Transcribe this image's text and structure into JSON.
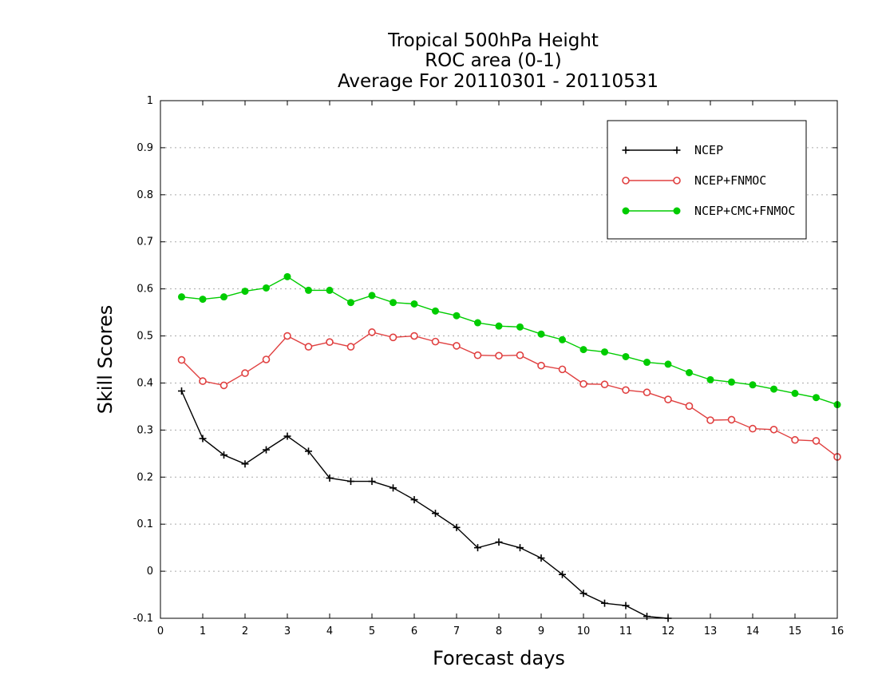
{
  "chart_data": {
    "type": "line",
    "title_lines": [
      "Tropical 500hPa Height",
      "ROC area (0-1)",
      "Average For 20110301 - 20110531"
    ],
    "xlabel": "Forecast days",
    "ylabel": "Skill Scores",
    "xlim": [
      0,
      16
    ],
    "ylim": [
      -0.1,
      1
    ],
    "xticks": [
      "0",
      "1",
      "2",
      "3",
      "4",
      "5",
      "6",
      "7",
      "8",
      "9",
      "10",
      "11",
      "12",
      "13",
      "14",
      "15",
      "16"
    ],
    "yticks": [
      "-0.1",
      "0",
      "0.1",
      "0.2",
      "0.3",
      "0.4",
      "0.5",
      "0.6",
      "0.7",
      "0.8",
      "0.9",
      "1"
    ],
    "grid": "horizontal-dotted",
    "legend_position": "top-right",
    "series": [
      {
        "name": "NCEP",
        "color": "#000000",
        "marker": "plus",
        "x": [
          0.5,
          1,
          1.5,
          2,
          2.5,
          3,
          3.5,
          4,
          4.5,
          5,
          5.5,
          6,
          6.5,
          7,
          7.5,
          8,
          8.5,
          9,
          9.5,
          10,
          10.5,
          11,
          11.5,
          12
        ],
        "y": [
          0.383,
          0.282,
          0.247,
          0.228,
          0.258,
          0.287,
          0.255,
          0.198,
          0.191,
          0.191,
          0.177,
          0.152,
          0.123,
          0.093,
          0.05,
          0.062,
          0.05,
          0.028,
          -0.007,
          -0.047,
          -0.068,
          -0.073,
          -0.096,
          -0.1
        ]
      },
      {
        "name": "NCEP+FNMOC",
        "color": "#e04040",
        "marker": "open-circle",
        "x": [
          0.5,
          1,
          1.5,
          2,
          2.5,
          3,
          3.5,
          4,
          4.5,
          5,
          5.5,
          6,
          6.5,
          7,
          7.5,
          8,
          8.5,
          9,
          9.5,
          10,
          10.5,
          11,
          11.5,
          12,
          12.5,
          13,
          13.5,
          14,
          14.5,
          15,
          15.5,
          16
        ],
        "y": [
          0.449,
          0.404,
          0.395,
          0.421,
          0.45,
          0.5,
          0.477,
          0.487,
          0.477,
          0.508,
          0.497,
          0.5,
          0.488,
          0.479,
          0.459,
          0.458,
          0.459,
          0.437,
          0.429,
          0.398,
          0.397,
          0.385,
          0.38,
          0.365,
          0.351,
          0.321,
          0.322,
          0.303,
          0.301,
          0.279,
          0.277,
          0.243
        ]
      },
      {
        "name": "NCEP+CMC+FNMOC",
        "color": "#00cc00",
        "marker": "filled-circle",
        "x": [
          0.5,
          1,
          1.5,
          2,
          2.5,
          3,
          3.5,
          4,
          4.5,
          5,
          5.5,
          6,
          6.5,
          7,
          7.5,
          8,
          8.5,
          9,
          9.5,
          10,
          10.5,
          11,
          11.5,
          12,
          12.5,
          13,
          13.5,
          14,
          14.5,
          15,
          15.5,
          16
        ],
        "y": [
          0.583,
          0.578,
          0.583,
          0.595,
          0.602,
          0.626,
          0.597,
          0.597,
          0.571,
          0.586,
          0.571,
          0.568,
          0.553,
          0.543,
          0.528,
          0.521,
          0.519,
          0.504,
          0.492,
          0.471,
          0.466,
          0.456,
          0.444,
          0.44,
          0.422,
          0.407,
          0.402,
          0.396,
          0.387,
          0.378,
          0.369,
          0.354
        ]
      }
    ]
  }
}
